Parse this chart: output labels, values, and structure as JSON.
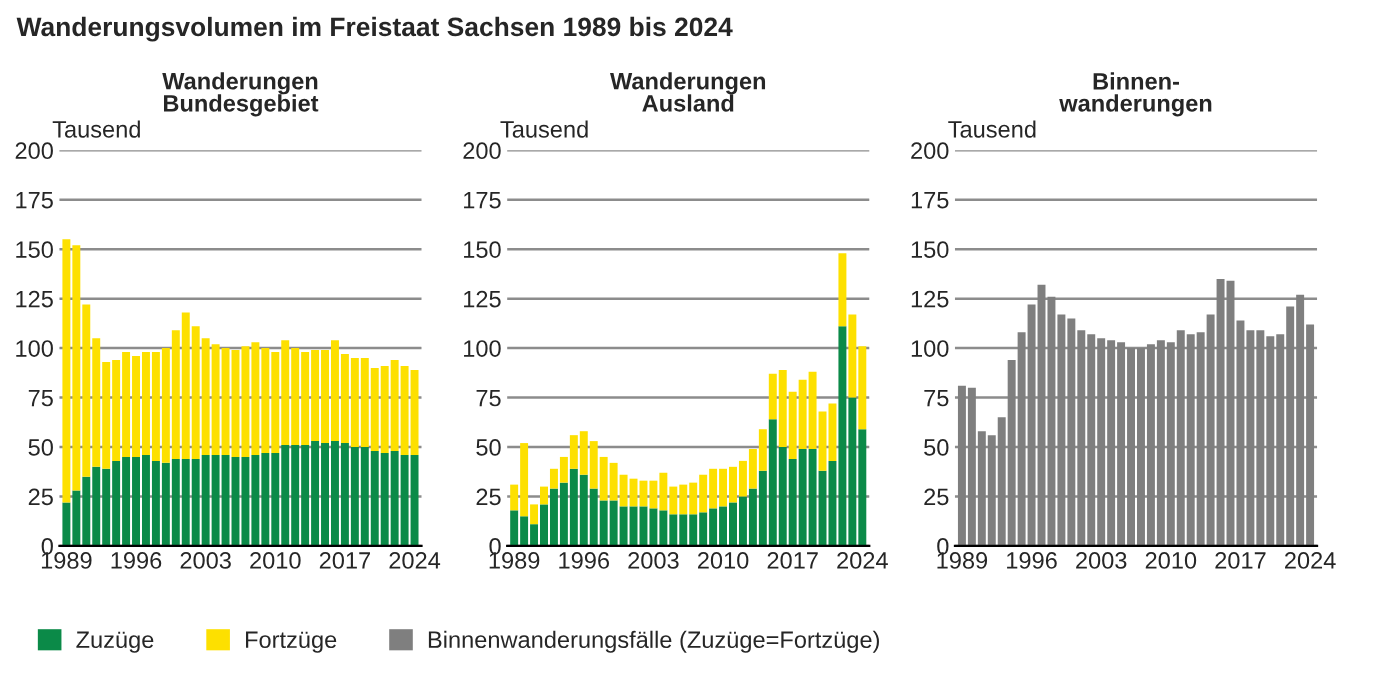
{
  "chart_data": [
    {
      "type": "other",
      "title": "Wanderungsvolumen im Freistaat Sachsen 1989 bis 2024"
    },
    {
      "type": "bar",
      "stacked": true,
      "title": "Wanderungen\nBundesgebiet",
      "ylabel": "Tausend",
      "categories": [
        "1989",
        null,
        null,
        null,
        null,
        null,
        null,
        "1996",
        null,
        null,
        null,
        null,
        null,
        null,
        "2003",
        null,
        null,
        null,
        null,
        null,
        null,
        "2010",
        null,
        null,
        null,
        null,
        null,
        null,
        "2017",
        null,
        null,
        null,
        null,
        null,
        null,
        "2024"
      ],
      "ylim": [
        0,
        200
      ],
      "yticks": [
        0,
        25,
        50,
        75,
        100,
        125,
        150,
        175,
        200
      ],
      "grid": "y",
      "legend": "bottom",
      "series": [
        {
          "name": "Zuzüge",
          "color": "#0b8a48",
          "values": [
            22,
            28,
            35,
            40,
            39,
            43,
            45,
            45,
            46,
            43,
            42,
            44,
            44,
            44,
            46,
            46,
            46,
            45,
            45,
            46,
            47,
            47,
            51,
            51,
            51,
            53,
            52,
            53,
            52,
            50,
            50,
            48,
            47,
            48,
            46,
            46
          ]
        },
        {
          "name": "Fortzüge",
          "color": "#fde000",
          "values": [
            133,
            124,
            87,
            65,
            54,
            51,
            53,
            51,
            52,
            55,
            58,
            65,
            74,
            67,
            59,
            56,
            54,
            54,
            56,
            57,
            53,
            51,
            53,
            49,
            47,
            46,
            47,
            51,
            45,
            45,
            45,
            42,
            44,
            46,
            45,
            43
          ]
        }
      ]
    },
    {
      "type": "bar",
      "stacked": true,
      "title": "Wanderungen\nAusland",
      "ylabel": "Tausend",
      "categories": [
        "1989",
        null,
        null,
        null,
        null,
        null,
        null,
        "1996",
        null,
        null,
        null,
        null,
        null,
        null,
        "2003",
        null,
        null,
        null,
        null,
        null,
        null,
        "2010",
        null,
        null,
        null,
        null,
        null,
        null,
        "2017",
        null,
        null,
        null,
        null,
        null,
        null,
        "2024"
      ],
      "ylim": [
        0,
        200
      ],
      "yticks": [
        0,
        25,
        50,
        75,
        100,
        125,
        150,
        175,
        200
      ],
      "grid": "y",
      "legend": "bottom",
      "series": [
        {
          "name": "Zuzüge",
          "color": "#0b8a48",
          "values": [
            18,
            15,
            11,
            21,
            29,
            32,
            39,
            36,
            29,
            23,
            23,
            20,
            20,
            20,
            19,
            18,
            16,
            16,
            16,
            17,
            19,
            20,
            22,
            25,
            29,
            38,
            64,
            50,
            44,
            49,
            49,
            38,
            43,
            111,
            75,
            59
          ]
        },
        {
          "name": "Fortzüge",
          "color": "#fde000",
          "values": [
            13,
            37,
            10,
            9,
            10,
            13,
            17,
            22,
            24,
            22,
            19,
            16,
            14,
            13,
            14,
            19,
            14,
            15,
            16,
            19,
            20,
            19,
            18,
            18,
            20,
            21,
            23,
            39,
            34,
            35,
            39,
            30,
            29,
            37,
            42,
            42
          ]
        }
      ]
    },
    {
      "type": "bar",
      "title": "Binnen-\nwanderungen",
      "ylabel": "Tausend",
      "categories": [
        "1989",
        null,
        null,
        null,
        null,
        null,
        null,
        "1996",
        null,
        null,
        null,
        null,
        null,
        null,
        "2003",
        null,
        null,
        null,
        null,
        null,
        null,
        "2010",
        null,
        null,
        null,
        null,
        null,
        null,
        "2017",
        null,
        null,
        null,
        null,
        null,
        null,
        "2024"
      ],
      "ylim": [
        0,
        200
      ],
      "yticks": [
        0,
        25,
        50,
        75,
        100,
        125,
        150,
        175,
        200
      ],
      "grid": "y",
      "legend": "bottom",
      "series": [
        {
          "name": "Binnenwanderungsfälle (Zuzüge=Fortzüge)",
          "color": "#7f7f7f",
          "values": [
            81,
            80,
            58,
            56,
            65,
            94,
            108,
            122,
            132,
            126,
            117,
            115,
            109,
            107,
            105,
            104,
            103,
            100,
            100,
            102,
            104,
            103,
            109,
            107,
            108,
            117,
            135,
            134,
            114,
            109,
            109,
            106,
            107,
            121,
            127,
            112
          ]
        }
      ]
    }
  ]
}
